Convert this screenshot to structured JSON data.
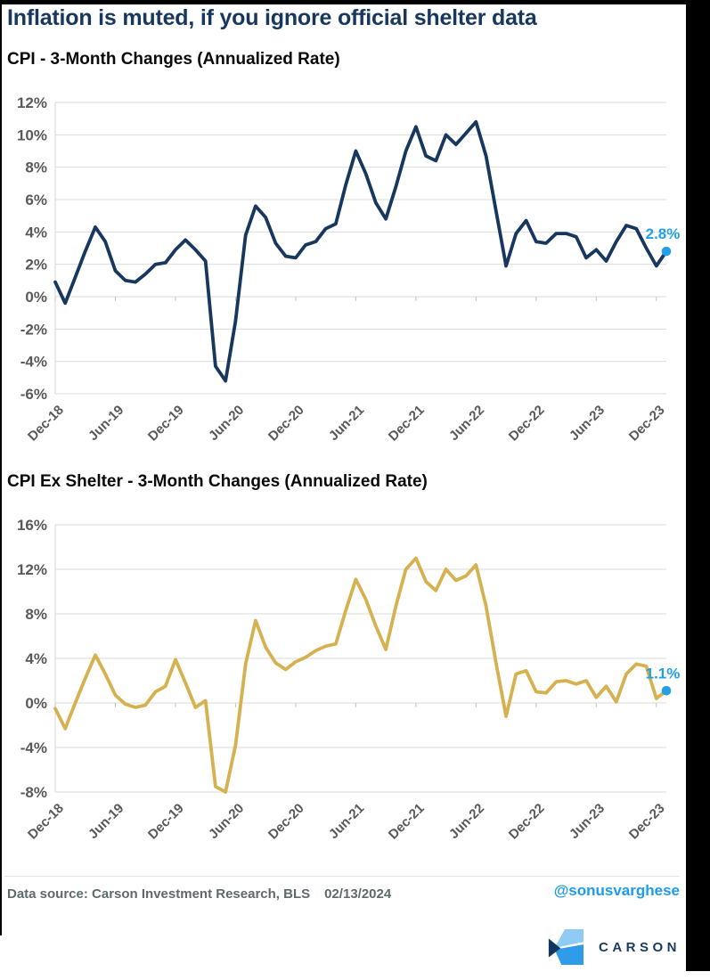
{
  "page": {
    "title": "Inflation is muted, if you ignore official shelter data",
    "footer": {
      "source": "Data source: Carson Investment Research, BLS",
      "date": "02/13/2024",
      "handle": "@sonusvarghese",
      "logo_text": "CARSON"
    },
    "colors": {
      "navy": "#17375E",
      "gold": "#D6B14F",
      "accent_blue": "#1FA0E9",
      "handle_blue": "#1D9BF0",
      "axis_gray": "#595959",
      "gridline": "#DBDBDB",
      "logo_light_blue": "#8FCBF5",
      "logo_blue": "#2F9CE9",
      "logo_navy": "#14365C"
    }
  },
  "chart_data": [
    {
      "type": "line",
      "title": "CPI - 3-Month Changes (Annualized Rate)",
      "series_name": "CPI 3-month annualized change",
      "xlabel": "",
      "ylabel": "",
      "ylim": [
        -6,
        12
      ],
      "y_tick_step": 2,
      "grid": true,
      "legend": "none",
      "line_color": "#17375E",
      "end_label": "2.8%",
      "x_tick_labels": [
        "Dec-18",
        "Jun-19",
        "Dec-19",
        "Jun-20",
        "Dec-20",
        "Jun-21",
        "Dec-21",
        "Jun-22",
        "Dec-22",
        "Jun-23",
        "Dec-23"
      ],
      "x": [
        "Dec-18",
        "Jan-19",
        "Feb-19",
        "Mar-19",
        "Apr-19",
        "May-19",
        "Jun-19",
        "Jul-19",
        "Aug-19",
        "Sep-19",
        "Oct-19",
        "Nov-19",
        "Dec-19",
        "Jan-20",
        "Feb-20",
        "Mar-20",
        "Apr-20",
        "May-20",
        "Jun-20",
        "Jul-20",
        "Aug-20",
        "Sep-20",
        "Oct-20",
        "Nov-20",
        "Dec-20",
        "Jan-21",
        "Feb-21",
        "Mar-21",
        "Apr-21",
        "May-21",
        "Jun-21",
        "Jul-21",
        "Aug-21",
        "Sep-21",
        "Oct-21",
        "Nov-21",
        "Dec-21",
        "Jan-22",
        "Feb-22",
        "Mar-22",
        "Apr-22",
        "May-22",
        "Jun-22",
        "Jul-22",
        "Aug-22",
        "Sep-22",
        "Oct-22",
        "Nov-22",
        "Dec-22",
        "Jan-23",
        "Feb-23",
        "Mar-23",
        "Apr-23",
        "May-23",
        "Jun-23",
        "Jul-23",
        "Aug-23",
        "Sep-23",
        "Oct-23",
        "Nov-23",
        "Dec-23",
        "Jan-24"
      ],
      "values": [
        0.9,
        -0.4,
        1.2,
        2.8,
        4.3,
        3.4,
        1.6,
        1.0,
        0.9,
        1.4,
        2.0,
        2.1,
        2.9,
        3.5,
        2.9,
        2.2,
        -4.3,
        -5.2,
        -1.5,
        3.8,
        5.6,
        4.9,
        3.3,
        2.5,
        2.4,
        3.2,
        3.4,
        4.2,
        4.5,
        6.9,
        9.0,
        7.6,
        5.8,
        4.8,
        6.8,
        9.0,
        10.5,
        8.7,
        8.4,
        10.0,
        9.4,
        10.1,
        10.8,
        8.7,
        5.3,
        1.9,
        3.9,
        4.7,
        3.4,
        3.3,
        3.9,
        3.9,
        3.7,
        2.4,
        2.9,
        2.2,
        3.4,
        4.4,
        4.2,
        3.0,
        1.9,
        2.8
      ]
    },
    {
      "type": "line",
      "title": "CPI Ex Shelter - 3-Month Changes (Annualized Rate)",
      "series_name": "CPI ex shelter 3-month annualized change",
      "xlabel": "",
      "ylabel": "",
      "ylim": [
        -8,
        16
      ],
      "y_tick_step": 4,
      "grid": true,
      "legend": "none",
      "line_color": "#D6B14F",
      "end_label": "1.1%",
      "x_tick_labels": [
        "Dec-18",
        "Jun-19",
        "Dec-19",
        "Jun-20",
        "Dec-20",
        "Jun-21",
        "Dec-21",
        "Jun-22",
        "Dec-22",
        "Jun-23",
        "Dec-23"
      ],
      "x": [
        "Dec-18",
        "Jan-19",
        "Feb-19",
        "Mar-19",
        "Apr-19",
        "May-19",
        "Jun-19",
        "Jul-19",
        "Aug-19",
        "Sep-19",
        "Oct-19",
        "Nov-19",
        "Dec-19",
        "Jan-20",
        "Feb-20",
        "Mar-20",
        "Apr-20",
        "May-20",
        "Jun-20",
        "Jul-20",
        "Aug-20",
        "Sep-20",
        "Oct-20",
        "Nov-20",
        "Dec-20",
        "Jan-21",
        "Feb-21",
        "Mar-21",
        "Apr-21",
        "May-21",
        "Jun-21",
        "Jul-21",
        "Aug-21",
        "Sep-21",
        "Oct-21",
        "Nov-21",
        "Dec-21",
        "Jan-22",
        "Feb-22",
        "Mar-22",
        "Apr-22",
        "May-22",
        "Jun-22",
        "Jul-22",
        "Aug-22",
        "Sep-22",
        "Oct-22",
        "Nov-22",
        "Dec-22",
        "Jan-23",
        "Feb-23",
        "Mar-23",
        "Apr-23",
        "May-23",
        "Jun-23",
        "Jul-23",
        "Aug-23",
        "Sep-23",
        "Oct-23",
        "Nov-23",
        "Dec-23",
        "Jan-24"
      ],
      "values": [
        -0.5,
        -2.3,
        0.0,
        2.2,
        4.3,
        2.6,
        0.7,
        -0.1,
        -0.4,
        -0.2,
        1.0,
        1.5,
        3.9,
        1.8,
        -0.4,
        0.2,
        -7.5,
        -8.0,
        -3.8,
        3.5,
        7.4,
        5.0,
        3.6,
        3.0,
        3.7,
        4.1,
        4.7,
        5.1,
        5.3,
        8.3,
        11.1,
        9.3,
        6.9,
        4.8,
        8.7,
        12.0,
        13.0,
        10.9,
        10.1,
        12.0,
        11.0,
        11.4,
        12.4,
        8.7,
        3.6,
        -1.2,
        2.6,
        2.9,
        1.0,
        0.9,
        1.9,
        2.0,
        1.7,
        2.0,
        0.5,
        1.5,
        0.1,
        2.6,
        3.5,
        3.3,
        0.4,
        1.1
      ]
    }
  ]
}
